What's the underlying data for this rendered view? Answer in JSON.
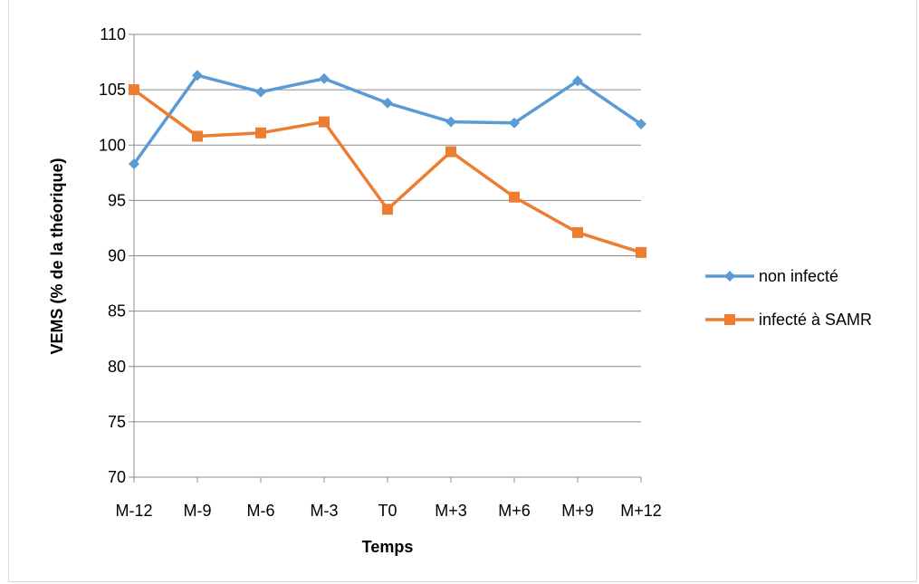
{
  "chart_data": {
    "type": "line",
    "categories": [
      "M-12",
      "M-9",
      "M-6",
      "M-3",
      "T0",
      "M+3",
      "M+6",
      "M+9",
      "M+12"
    ],
    "series": [
      {
        "name": "non infecté",
        "color": "#5b9bd5",
        "marker": "diamond",
        "values": [
          98.3,
          106.3,
          104.8,
          106.0,
          103.8,
          102.1,
          102.0,
          105.8,
          101.9
        ]
      },
      {
        "name": "infecté à SAMR",
        "color": "#ed7d31",
        "marker": "square",
        "values": [
          105.0,
          100.8,
          101.1,
          102.1,
          94.2,
          99.4,
          95.3,
          92.1,
          90.3
        ]
      }
    ],
    "xlabel": "Temps",
    "ylabel": "VEMS (% de la théorique)",
    "ylim": [
      70,
      110
    ],
    "yticks": [
      70,
      75,
      80,
      85,
      90,
      95,
      100,
      105,
      110
    ],
    "grid": true,
    "legend_position": "right"
  }
}
